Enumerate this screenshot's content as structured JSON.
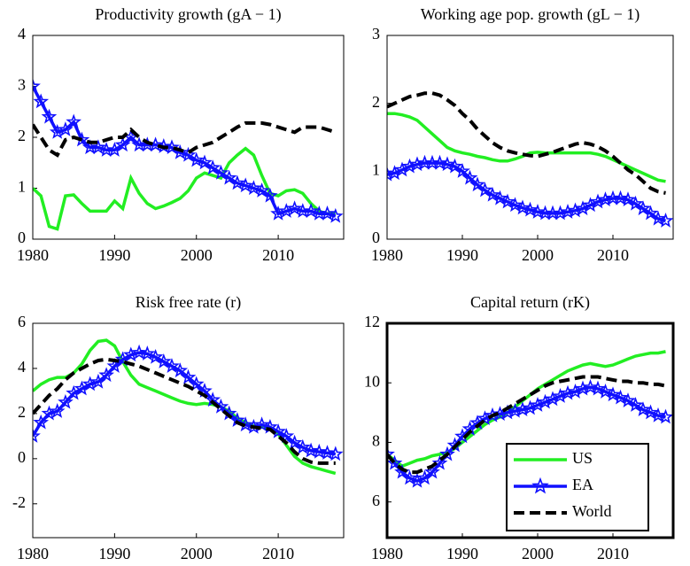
{
  "chart_data": [
    {
      "type": "line",
      "title": "Productivity growth (gA − 1)",
      "x": [
        1980,
        1981,
        1982,
        1983,
        1984,
        1985,
        1986,
        1987,
        1988,
        1989,
        1990,
        1991,
        1992,
        1993,
        1994,
        1995,
        1996,
        1997,
        1998,
        1999,
        2000,
        2001,
        2002,
        2003,
        2004,
        2005,
        2006,
        2007,
        2008,
        2009,
        2010,
        2011,
        2012,
        2013,
        2014,
        2015,
        2016,
        2017
      ],
      "xlim": [
        1980,
        2018
      ],
      "xticks": [
        1980,
        1990,
        2000,
        2010
      ],
      "ylim": [
        0,
        4
      ],
      "yticks": [
        0,
        1,
        2,
        3,
        4
      ],
      "box_width": 1,
      "series": [
        {
          "color": "#22ee22",
          "values": [
            1.0,
            0.85,
            0.25,
            0.2,
            0.85,
            0.87,
            0.7,
            0.55,
            0.55,
            0.55,
            0.75,
            0.6,
            1.2,
            0.9,
            0.7,
            0.6,
            0.65,
            0.72,
            0.8,
            0.95,
            1.2,
            1.3,
            1.25,
            1.2,
            1.5,
            1.65,
            1.78,
            1.65,
            1.25,
            0.9,
            0.85,
            0.95,
            0.97,
            0.9,
            0.7,
            0.55,
            0.5,
            0.5
          ]
        },
        {
          "color": "#1010ff",
          "marker": "star",
          "values": [
            3.0,
            2.7,
            2.4,
            2.1,
            2.15,
            2.3,
            1.95,
            1.8,
            1.8,
            1.75,
            1.75,
            1.85,
            2.0,
            1.85,
            1.85,
            1.85,
            1.82,
            1.8,
            1.7,
            1.65,
            1.55,
            1.5,
            1.4,
            1.3,
            1.2,
            1.1,
            1.05,
            1.0,
            0.95,
            0.85,
            0.5,
            0.55,
            0.6,
            0.55,
            0.55,
            0.5,
            0.5,
            0.45
          ]
        },
        {
          "color": "#000000",
          "dash": true,
          "values": [
            2.25,
            2.0,
            1.75,
            1.65,
            1.95,
            2.0,
            1.95,
            1.9,
            1.9,
            1.95,
            2.0,
            2.0,
            2.15,
            2.0,
            1.9,
            1.85,
            1.8,
            1.8,
            1.75,
            1.7,
            1.8,
            1.85,
            1.9,
            2.0,
            2.1,
            2.2,
            2.28,
            2.28,
            2.28,
            2.25,
            2.2,
            2.15,
            2.1,
            2.2,
            2.2,
            2.2,
            2.15,
            2.1
          ]
        }
      ]
    },
    {
      "type": "line",
      "title": "Working age pop. growth (gL − 1)",
      "x": [
        1980,
        1981,
        1982,
        1983,
        1984,
        1985,
        1986,
        1987,
        1988,
        1989,
        1990,
        1991,
        1992,
        1993,
        1994,
        1995,
        1996,
        1997,
        1998,
        1999,
        2000,
        2001,
        2002,
        2003,
        2004,
        2005,
        2006,
        2007,
        2008,
        2009,
        2010,
        2011,
        2012,
        2013,
        2014,
        2015,
        2016,
        2017
      ],
      "xlim": [
        1980,
        2018
      ],
      "xticks": [
        1980,
        1990,
        2000,
        2010
      ],
      "ylim": [
        0,
        3
      ],
      "yticks": [
        0,
        1,
        2,
        3
      ],
      "box_width": 1,
      "series": [
        {
          "color": "#22ee22",
          "values": [
            1.85,
            1.85,
            1.83,
            1.8,
            1.75,
            1.65,
            1.55,
            1.45,
            1.35,
            1.3,
            1.27,
            1.25,
            1.22,
            1.2,
            1.17,
            1.15,
            1.15,
            1.18,
            1.22,
            1.27,
            1.28,
            1.27,
            1.27,
            1.27,
            1.27,
            1.27,
            1.27,
            1.27,
            1.25,
            1.22,
            1.17,
            1.12,
            1.07,
            1.02,
            0.97,
            0.92,
            0.87,
            0.85
          ]
        },
        {
          "color": "#1010ff",
          "marker": "star",
          "values": [
            0.95,
            0.97,
            1.02,
            1.07,
            1.1,
            1.12,
            1.12,
            1.12,
            1.1,
            1.07,
            1.0,
            0.9,
            0.8,
            0.72,
            0.65,
            0.6,
            0.55,
            0.5,
            0.46,
            0.43,
            0.4,
            0.38,
            0.38,
            0.38,
            0.4,
            0.42,
            0.45,
            0.5,
            0.55,
            0.58,
            0.6,
            0.6,
            0.58,
            0.52,
            0.45,
            0.38,
            0.3,
            0.27
          ]
        },
        {
          "color": "#000000",
          "dash": true,
          "values": [
            1.95,
            2.0,
            2.05,
            2.1,
            2.12,
            2.15,
            2.15,
            2.12,
            2.05,
            1.97,
            1.85,
            1.75,
            1.62,
            1.52,
            1.42,
            1.35,
            1.3,
            1.27,
            1.25,
            1.23,
            1.22,
            1.25,
            1.28,
            1.32,
            1.36,
            1.4,
            1.42,
            1.4,
            1.36,
            1.3,
            1.22,
            1.12,
            1.02,
            0.95,
            0.85,
            0.75,
            0.7,
            0.68
          ]
        }
      ]
    },
    {
      "type": "line",
      "title": "Risk free rate (r)",
      "x": [
        1980,
        1981,
        1982,
        1983,
        1984,
        1985,
        1986,
        1987,
        1988,
        1989,
        1990,
        1991,
        1992,
        1993,
        1994,
        1995,
        1996,
        1997,
        1998,
        1999,
        2000,
        2001,
        2002,
        2003,
        2004,
        2005,
        2006,
        2007,
        2008,
        2009,
        2010,
        2011,
        2012,
        2013,
        2014,
        2015,
        2016,
        2017
      ],
      "xlim": [
        1980,
        2018
      ],
      "xticks": [
        1980,
        1990,
        2000,
        2010
      ],
      "ylim": [
        -3.5,
        6
      ],
      "yticks": [
        -2,
        0,
        2,
        4,
        6
      ],
      "box_width": 1,
      "series": [
        {
          "color": "#22ee22",
          "values": [
            3.0,
            3.3,
            3.5,
            3.6,
            3.6,
            3.8,
            4.2,
            4.8,
            5.2,
            5.25,
            5.0,
            4.3,
            3.7,
            3.3,
            3.15,
            3.0,
            2.85,
            2.7,
            2.55,
            2.45,
            2.4,
            2.45,
            2.4,
            2.3,
            2.1,
            1.8,
            1.6,
            1.45,
            1.4,
            1.35,
            1.1,
            0.6,
            0.1,
            -0.2,
            -0.35,
            -0.45,
            -0.55,
            -0.65
          ]
        },
        {
          "color": "#1010ff",
          "marker": "star",
          "values": [
            1.0,
            1.6,
            2.0,
            2.1,
            2.5,
            2.9,
            3.1,
            3.3,
            3.4,
            3.7,
            4.1,
            4.4,
            4.6,
            4.7,
            4.65,
            4.5,
            4.3,
            4.1,
            3.9,
            3.6,
            3.3,
            3.0,
            2.6,
            2.3,
            2.0,
            1.7,
            1.5,
            1.4,
            1.5,
            1.4,
            1.2,
            1.0,
            0.7,
            0.5,
            0.35,
            0.3,
            0.25,
            0.2
          ]
        },
        {
          "color": "#000000",
          "dash": true,
          "values": [
            2.0,
            2.4,
            2.8,
            3.1,
            3.5,
            3.8,
            4.0,
            4.2,
            4.35,
            4.4,
            4.35,
            4.3,
            4.2,
            4.1,
            3.95,
            3.8,
            3.65,
            3.5,
            3.35,
            3.2,
            3.0,
            2.8,
            2.5,
            2.2,
            1.9,
            1.6,
            1.45,
            1.4,
            1.35,
            1.3,
            1.0,
            0.7,
            0.3,
            0.0,
            -0.15,
            -0.2,
            -0.2,
            -0.2
          ]
        }
      ]
    },
    {
      "type": "line",
      "title": "Capital return (rK)",
      "x": [
        1980,
        1981,
        1982,
        1983,
        1984,
        1985,
        1986,
        1987,
        1988,
        1989,
        1990,
        1991,
        1992,
        1993,
        1994,
        1995,
        1996,
        1997,
        1998,
        1999,
        2000,
        2001,
        2002,
        2003,
        2004,
        2005,
        2006,
        2007,
        2008,
        2009,
        2010,
        2011,
        2012,
        2013,
        2014,
        2015,
        2016,
        2017
      ],
      "xlim": [
        1980,
        2018
      ],
      "xticks": [
        1980,
        1990,
        2000,
        2010
      ],
      "ylim": [
        4.8,
        12
      ],
      "yticks": [
        6,
        8,
        10,
        12
      ],
      "box_width": 3,
      "legend": "lower right",
      "series": [
        {
          "name": "US",
          "color": "#22ee22",
          "values": [
            7.6,
            7.4,
            7.2,
            7.3,
            7.4,
            7.45,
            7.55,
            7.6,
            7.65,
            7.8,
            8.0,
            8.2,
            8.4,
            8.6,
            8.75,
            8.85,
            9.0,
            9.2,
            9.4,
            9.6,
            9.8,
            9.95,
            10.1,
            10.25,
            10.4,
            10.5,
            10.6,
            10.65,
            10.6,
            10.55,
            10.6,
            10.7,
            10.8,
            10.9,
            10.95,
            11.0,
            11.0,
            11.05
          ]
        },
        {
          "name": "EA",
          "color": "#1010ff",
          "marker": "star",
          "values": [
            7.6,
            7.3,
            7.0,
            6.8,
            6.7,
            6.8,
            7.0,
            7.3,
            7.6,
            7.9,
            8.2,
            8.45,
            8.65,
            8.8,
            8.9,
            8.95,
            9.0,
            9.05,
            9.1,
            9.15,
            9.25,
            9.35,
            9.45,
            9.55,
            9.65,
            9.7,
            9.8,
            9.85,
            9.8,
            9.7,
            9.6,
            9.5,
            9.4,
            9.25,
            9.1,
            9.0,
            8.9,
            8.85
          ]
        },
        {
          "name": "World",
          "color": "#000000",
          "dash": true,
          "values": [
            7.6,
            7.3,
            7.1,
            7.0,
            7.0,
            7.1,
            7.2,
            7.4,
            7.6,
            7.85,
            8.1,
            8.35,
            8.55,
            8.75,
            8.9,
            9.0,
            9.15,
            9.3,
            9.45,
            9.6,
            9.75,
            9.9,
            10.0,
            10.05,
            10.1,
            10.15,
            10.2,
            10.2,
            10.2,
            10.15,
            10.1,
            10.05,
            10.05,
            10.0,
            10.0,
            9.95,
            9.95,
            9.9
          ]
        }
      ]
    }
  ]
}
